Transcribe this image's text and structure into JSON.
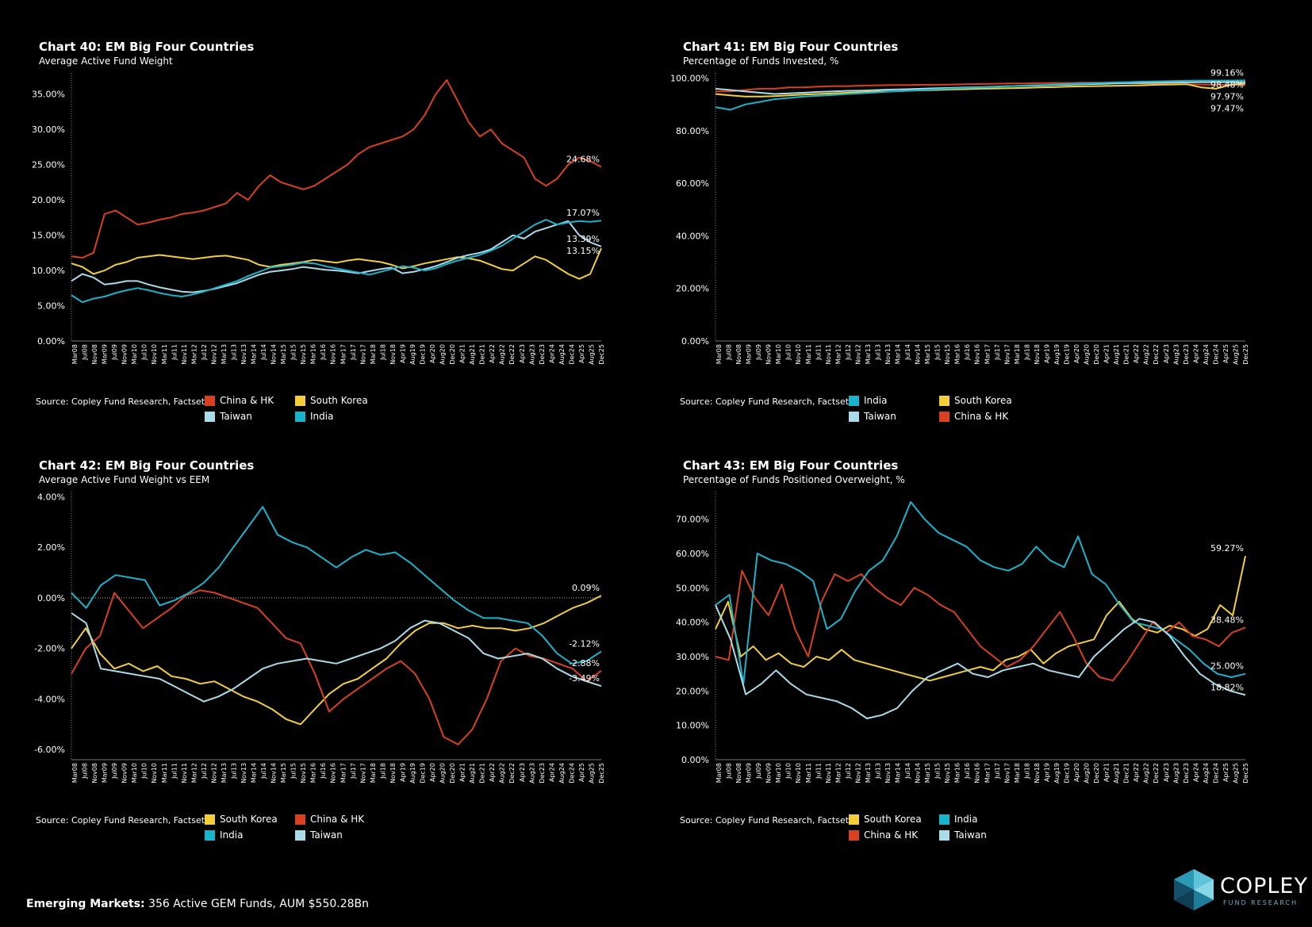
{
  "colors": {
    "china": "#d8401f",
    "korea": "#f2cf3a",
    "taiwan": "#a9dbe8",
    "india": "#17b4cc",
    "axis": "#cccccc"
  },
  "x_tick_labels": [
    "Mar08",
    "Jul08",
    "Nov08",
    "Mar09",
    "Jul09",
    "Nov09",
    "Mar10",
    "Jul10",
    "Nov10",
    "Mar11",
    "Jul11",
    "Nov11",
    "Mar12",
    "Jul12",
    "Nov12",
    "Mar13",
    "Jul13",
    "Nov13",
    "Mar14",
    "Jul14",
    "Nov14",
    "Mar15",
    "Jul15",
    "Nov15",
    "Mar16",
    "Jul16",
    "Nov16",
    "Mar17",
    "Jul17",
    "Nov17",
    "Mar18",
    "Jul18",
    "Nov18",
    "Apr19",
    "Aug19",
    "Dec19",
    "Apr20",
    "Aug20",
    "Dec20",
    "Apr21",
    "Aug21",
    "Dec21",
    "Apr22",
    "Aug22",
    "Dec22",
    "Apr23",
    "Aug23",
    "Dec23",
    "Apr24",
    "Aug24",
    "Dec24",
    "Apr25",
    "Aug25",
    "Dec25"
  ],
  "chart_data": [
    {
      "id": "c40",
      "type": "line",
      "title": "Chart 40:  EM Big Four Countries",
      "subtitle": "Average Active Fund Weight",
      "source": "Source:  Copley Fund Research, Factset",
      "ylim": [
        0,
        38
      ],
      "y_ticks": [
        0,
        5,
        10,
        15,
        20,
        25,
        30,
        35
      ],
      "y_tick_labels": [
        "0.00%",
        "5.00%",
        "10.00%",
        "15.00%",
        "20.00%",
        "25.00%",
        "30.00%",
        "35.00%"
      ],
      "zero_line": false,
      "series": [
        {
          "name": "China & HK",
          "key": "china",
          "end_label": "24.68%",
          "values": [
            12,
            11.8,
            12.5,
            18,
            18.5,
            17.5,
            16.5,
            16.8,
            17.2,
            17.5,
            18,
            18.2,
            18.5,
            19,
            19.5,
            21,
            20,
            22,
            23.5,
            22.5,
            22,
            21.5,
            22,
            23,
            24,
            25,
            26.5,
            27.5,
            28,
            28.5,
            29,
            30,
            32,
            35,
            37,
            34,
            31,
            29,
            30,
            28,
            27,
            26,
            23,
            22,
            23,
            25,
            26,
            25.5,
            24.68
          ]
        },
        {
          "name": "South Korea",
          "key": "korea",
          "end_label": "13.15%",
          "values": [
            11,
            10.5,
            9.5,
            10,
            10.8,
            11.2,
            11.8,
            12,
            12.2,
            12,
            11.8,
            11.6,
            11.8,
            12,
            12.1,
            11.8,
            11.5,
            10.8,
            10.5,
            10.8,
            11,
            11.2,
            11.5,
            11.3,
            11.1,
            11.4,
            11.6,
            11.4,
            11.2,
            10.8,
            10.3,
            10.6,
            11,
            11.3,
            11.6,
            11.9,
            11.7,
            11.4,
            10.8,
            10.2,
            10,
            11,
            12,
            11.5,
            10.5,
            9.5,
            8.8,
            9.5,
            13.15
          ]
        },
        {
          "name": "Taiwan",
          "key": "taiwan",
          "end_label": "13.39%",
          "values": [
            8.5,
            9.5,
            9,
            8,
            8.2,
            8.5,
            8.5,
            8,
            7.6,
            7.3,
            7,
            6.9,
            7.1,
            7.4,
            7.8,
            8.2,
            8.8,
            9.4,
            9.8,
            10,
            10.2,
            10.5,
            10.3,
            10.1,
            10,
            9.8,
            9.6,
            9.9,
            10.2,
            10.4,
            9.6,
            9.8,
            10.2,
            10.6,
            11.2,
            11.8,
            12.2,
            12.5,
            13,
            14,
            15,
            14.5,
            15.5,
            16,
            16.5,
            17,
            15,
            14,
            13.39
          ]
        },
        {
          "name": "India",
          "key": "india",
          "end_label": "17.07%",
          "values": [
            6.5,
            5.5,
            6,
            6.3,
            6.8,
            7.2,
            7.5,
            7.2,
            6.8,
            6.5,
            6.3,
            6.6,
            7,
            7.5,
            8,
            8.5,
            9.2,
            9.8,
            10.4,
            10.6,
            10.8,
            11.1,
            11,
            10.6,
            10.3,
            10,
            9.7,
            9.4,
            9.8,
            10.2,
            10.6,
            10.4,
            10,
            10.3,
            10.9,
            11.4,
            11.8,
            12.2,
            12.8,
            13.5,
            14.5,
            15.5,
            16.5,
            17.2,
            16.5,
            16.8,
            17,
            16.9,
            17.07
          ]
        }
      ],
      "legend": [
        [
          "China & HK",
          "china"
        ],
        [
          "South Korea",
          "korea"
        ],
        [
          "Taiwan",
          "taiwan"
        ],
        [
          "India",
          "india"
        ]
      ]
    },
    {
      "id": "c41",
      "type": "line",
      "title": "Chart 41:  EM Big Four Countries",
      "subtitle": "Percentage of Funds Invested, %",
      "source": "Source:  Copley Fund Research, Factset",
      "ylim": [
        0,
        102
      ],
      "y_ticks": [
        0,
        20,
        40,
        60,
        80,
        100
      ],
      "y_tick_labels": [
        "0.00%",
        "20.00%",
        "40.00%",
        "60.00%",
        "80.00%",
        "100.00%"
      ],
      "zero_line": false,
      "series": [
        {
          "name": "China & HK",
          "key": "china",
          "end_label": "97.47%",
          "values": [
            95,
            95,
            95.5,
            96,
            96,
            96.5,
            96.5,
            96.8,
            97,
            97,
            97.2,
            97.3,
            97.4,
            97.4,
            97.5,
            97.5,
            97.6,
            97.7,
            97.8,
            97.9,
            98,
            98,
            98.1,
            98.2,
            98.2,
            98.3,
            98.3,
            98.2,
            98.1,
            98,
            97.9,
            97.8,
            97.7,
            97.6,
            97.5,
            97.5,
            97.47
          ]
        },
        {
          "name": "South Korea",
          "key": "korea",
          "end_label": "97.97%",
          "values": [
            94,
            93.5,
            93,
            93,
            93.2,
            93.5,
            93.8,
            94,
            94.2,
            94.5,
            94.7,
            94.9,
            95,
            95.2,
            95.4,
            95.5,
            95.7,
            95.8,
            96,
            96.1,
            96.2,
            96.3,
            96.5,
            96.6,
            96.8,
            96.9,
            97,
            97.1,
            97.2,
            97.3,
            97.5,
            97.6,
            97.7,
            96.5,
            96,
            97.5,
            97.97
          ]
        },
        {
          "name": "Taiwan",
          "key": "taiwan",
          "end_label": "98.48%",
          "values": [
            96,
            95.5,
            95,
            94.5,
            94,
            94.2,
            94.5,
            94.8,
            95,
            95.2,
            95.3,
            95.5,
            95.7,
            95.8,
            96,
            96.2,
            96.3,
            96.5,
            96.6,
            96.8,
            97,
            97.1,
            97.2,
            97.4,
            97.5,
            97.7,
            97.8,
            98,
            98.1,
            98.2,
            98.3,
            98.4,
            98.4,
            98.5,
            98.5,
            98.5,
            98.48
          ]
        },
        {
          "name": "India",
          "key": "india",
          "end_label": "99.16%",
          "values": [
            89,
            88,
            90,
            91,
            92,
            92.5,
            93,
            93.3,
            93.6,
            94,
            94.3,
            94.6,
            95,
            95.2,
            95.5,
            95.8,
            96,
            96.3,
            96.5,
            96.7,
            97,
            97.2,
            97.4,
            97.6,
            97.8,
            98,
            98.2,
            98.4,
            98.5,
            98.7,
            98.8,
            98.9,
            99,
            99.1,
            99.1,
            99.1,
            99.16
          ]
        }
      ],
      "legend": [
        [
          "India",
          "india"
        ],
        [
          "South Korea",
          "korea"
        ],
        [
          "Taiwan",
          "taiwan"
        ],
        [
          "China & HK",
          "china"
        ]
      ]
    },
    {
      "id": "c42",
      "type": "line",
      "title": "Chart 42:  EM Big Four Countries",
      "subtitle": "Average Active Fund Weight vs EEM",
      "source": "Source:  Copley Fund Research, Factset",
      "ylim": [
        -6.4,
        4.2
      ],
      "y_ticks": [
        -6,
        -4,
        -2,
        0,
        2,
        4
      ],
      "y_tick_labels": [
        "-6.00%",
        "-4.00%",
        "-2.00%",
        "0.00%",
        "2.00%",
        "4.00%"
      ],
      "zero_line": true,
      "series": [
        {
          "name": "South Korea",
          "key": "korea",
          "end_label": "0.09%",
          "values": [
            -2,
            -1.2,
            -2.2,
            -2.8,
            -2.6,
            -2.9,
            -2.7,
            -3.1,
            -3.2,
            -3.4,
            -3.3,
            -3.6,
            -3.9,
            -4.1,
            -4.4,
            -4.8,
            -5,
            -4.4,
            -3.8,
            -3.4,
            -3.2,
            -2.8,
            -2.4,
            -1.8,
            -1.3,
            -1,
            -1,
            -1.2,
            -1.1,
            -1.2,
            -1.2,
            -1.3,
            -1.2,
            -1,
            -0.7,
            -0.4,
            -0.2,
            0.09
          ]
        },
        {
          "name": "China & HK",
          "key": "china",
          "end_label": "-2.88%",
          "values": [
            -3,
            -2,
            -1.5,
            0.2,
            -0.5,
            -1.2,
            -0.8,
            -0.4,
            0.1,
            0.3,
            0.2,
            0,
            -0.2,
            -0.4,
            -1,
            -1.6,
            -1.8,
            -3,
            -4.5,
            -4,
            -3.6,
            -3.2,
            -2.8,
            -2.5,
            -3,
            -4,
            -5.5,
            -5.8,
            -5.2,
            -4,
            -2.5,
            -2,
            -2.3,
            -2.4,
            -2.6,
            -2.8,
            -3.3,
            -2.88
          ]
        },
        {
          "name": "India",
          "key": "india",
          "end_label": "-2.12%",
          "values": [
            0.2,
            -0.4,
            0.5,
            0.9,
            0.8,
            0.7,
            -0.3,
            -0.1,
            0.2,
            0.6,
            1.2,
            2,
            2.8,
            3.6,
            2.5,
            2.2,
            2,
            1.6,
            1.2,
            1.6,
            1.9,
            1.7,
            1.8,
            1.4,
            0.9,
            0.4,
            -0.1,
            -0.5,
            -0.8,
            -0.8,
            -0.9,
            -1,
            -1.5,
            -2.2,
            -2.6,
            -2.5,
            -2.12
          ]
        },
        {
          "name": "Taiwan",
          "key": "taiwan",
          "end_label": "-3.49%",
          "values": [
            -0.6,
            -1,
            -2.8,
            -2.9,
            -3,
            -3.1,
            -3.2,
            -3.5,
            -3.8,
            -4.1,
            -3.9,
            -3.6,
            -3.2,
            -2.8,
            -2.6,
            -2.5,
            -2.4,
            -2.5,
            -2.6,
            -2.4,
            -2.2,
            -2,
            -1.7,
            -1.2,
            -0.9,
            -1,
            -1.3,
            -1.6,
            -2.2,
            -2.4,
            -2.3,
            -2.2,
            -2.4,
            -2.8,
            -3.1,
            -3.3,
            -3.49
          ]
        }
      ],
      "legend": [
        [
          "South Korea",
          "korea"
        ],
        [
          "China & HK",
          "china"
        ],
        [
          "India",
          "india"
        ],
        [
          "Taiwan",
          "taiwan"
        ]
      ]
    },
    {
      "id": "c43",
      "type": "line",
      "title": "Chart 43:  EM Big Four Countries",
      "subtitle": "Percentage of Funds Positioned Overweight, %",
      "source": "Source:  Copley Fund Research, Factset",
      "ylim": [
        0,
        78
      ],
      "y_ticks": [
        0,
        10,
        20,
        30,
        40,
        50,
        60,
        70
      ],
      "y_tick_labels": [
        "0.00%",
        "10.00%",
        "20.00%",
        "30.00%",
        "40.00%",
        "50.00%",
        "60.00%",
        "70.00%"
      ],
      "zero_line": false,
      "series": [
        {
          "name": "South Korea",
          "key": "korea",
          "end_label": "59.27%",
          "values": [
            38,
            46,
            30,
            33,
            29,
            31,
            28,
            27,
            30,
            29,
            32,
            29,
            28,
            27,
            26,
            25,
            24,
            23,
            24,
            25,
            26,
            27,
            26,
            29,
            30,
            32,
            28,
            31,
            33,
            34,
            35,
            42,
            46,
            41,
            38,
            37,
            39,
            38,
            36,
            38,
            45,
            42,
            59.27
          ]
        },
        {
          "name": "China & HK",
          "key": "china",
          "end_label": "38.48%",
          "values": [
            30,
            29,
            55,
            47,
            42,
            51,
            38,
            30,
            46,
            54,
            52,
            54,
            50,
            47,
            45,
            50,
            48,
            45,
            43,
            38,
            33,
            30,
            27,
            29,
            33,
            38,
            43,
            36,
            28,
            24,
            23,
            28,
            34,
            40,
            37,
            40,
            36,
            35,
            33,
            37,
            38.48
          ]
        },
        {
          "name": "India",
          "key": "india",
          "end_label": "25.00%",
          "values": [
            45,
            48,
            22,
            60,
            58,
            57,
            55,
            52,
            38,
            41,
            49,
            55,
            58,
            65,
            75,
            70,
            66,
            64,
            62,
            58,
            56,
            55,
            57,
            62,
            58,
            56,
            65,
            54,
            51,
            45,
            40,
            39,
            38,
            35,
            32,
            28,
            25,
            24,
            25.0
          ]
        },
        {
          "name": "Taiwan",
          "key": "taiwan",
          "end_label": "18.82%",
          "values": [
            45,
            35,
            19,
            22,
            26,
            22,
            19,
            18,
            17,
            15,
            12,
            13,
            15,
            20,
            24,
            26,
            28,
            25,
            24,
            26,
            27,
            28,
            26,
            25,
            24,
            30,
            34,
            38,
            41,
            40,
            36,
            30,
            25,
            22,
            20,
            18.82
          ]
        }
      ],
      "legend": [
        [
          "South Korea",
          "korea"
        ],
        [
          "India",
          "india"
        ],
        [
          "China & HK",
          "china"
        ],
        [
          "Taiwan",
          "taiwan"
        ]
      ]
    }
  ],
  "footer": {
    "bold": "Emerging Markets:",
    "rest": "356 Active GEM Funds, AUM $550.28Bn"
  },
  "logo": {
    "word": "COPLEY",
    "sub": "FUND RESEARCH"
  }
}
